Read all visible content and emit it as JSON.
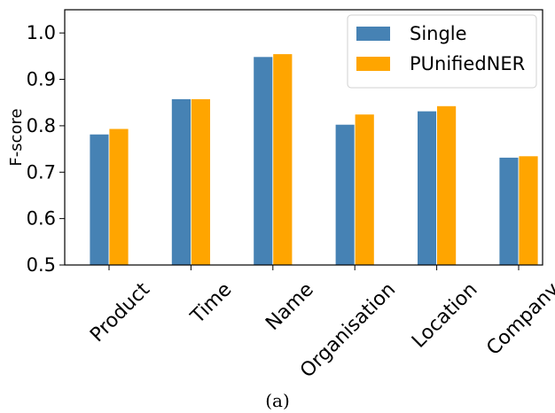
{
  "caption": "(a)",
  "colors": {
    "single": "#4682b4",
    "punified": "#ffa500"
  },
  "chart_data": {
    "type": "bar",
    "categories": [
      "Product",
      "Time",
      "Name",
      "Organisation",
      "Location",
      "Company"
    ],
    "series": [
      {
        "name": "Single",
        "values": [
          0.782,
          0.858,
          0.949,
          0.803,
          0.832,
          0.732
        ]
      },
      {
        "name": "PUnifiedNER",
        "values": [
          0.794,
          0.858,
          0.955,
          0.825,
          0.843,
          0.735
        ]
      }
    ],
    "xlabel": "",
    "ylabel": "F-score",
    "ylim": [
      0.5,
      1.05
    ],
    "yticks": [
      "0.5",
      "0.6",
      "0.7",
      "0.8",
      "0.9",
      "1.0"
    ],
    "grid": false,
    "legend": "top-right"
  }
}
